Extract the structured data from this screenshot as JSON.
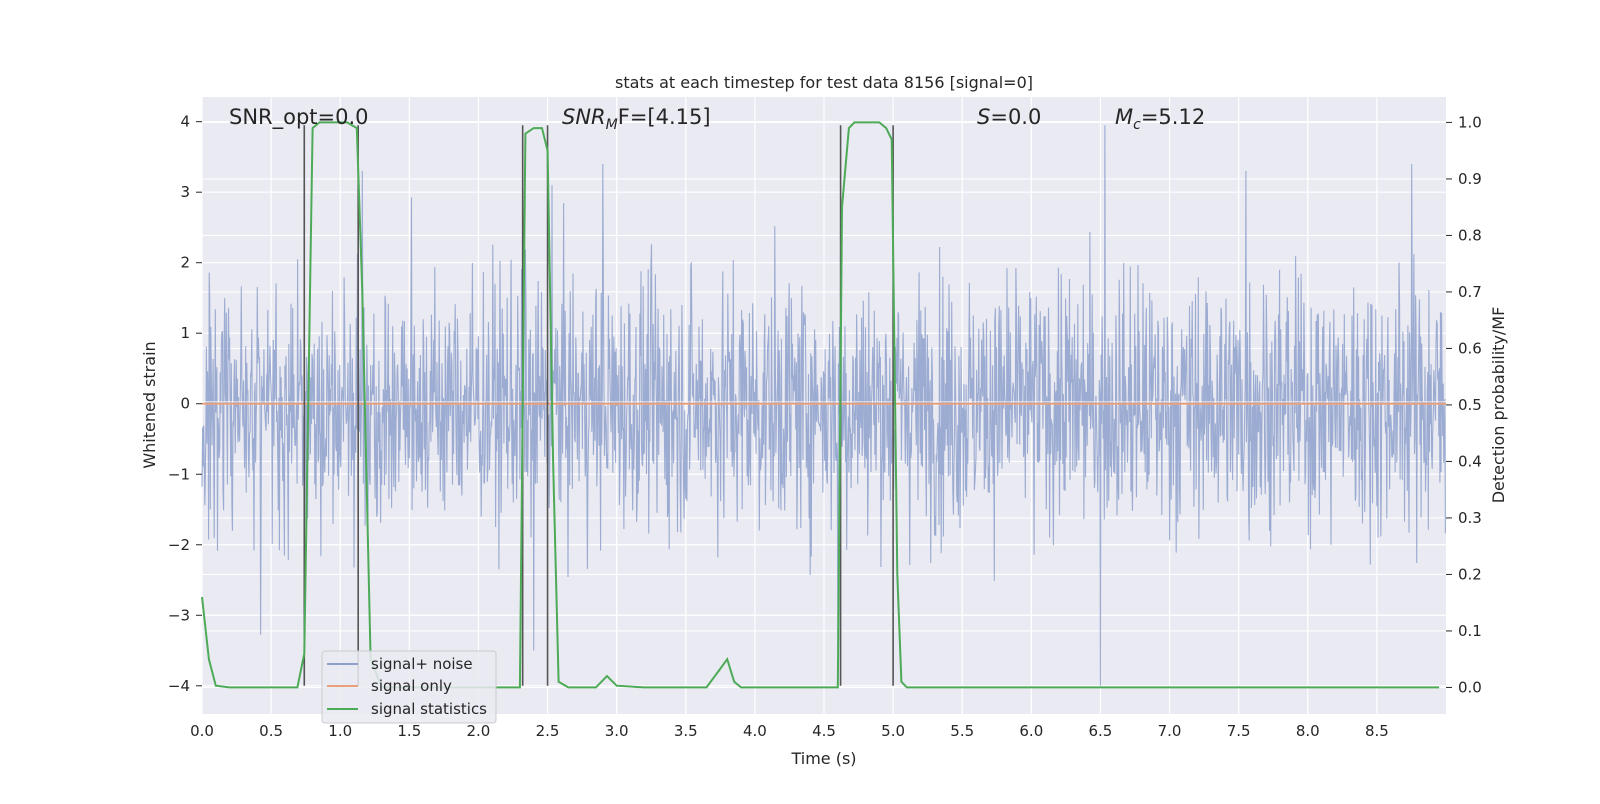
{
  "chart_data": {
    "type": "line",
    "title": "stats at each timestep for test data 8156 [signal=0]",
    "xlabel": "Time (s)",
    "ylabel_left": "Whitened strain",
    "ylabel_right": "Detection probability/MF",
    "xlim": [
      0,
      9.0
    ],
    "ylim_left": [
      -4.4,
      4.35
    ],
    "ylim_right": [
      -0.047,
      1.045
    ],
    "x_ticks": [
      0.0,
      0.5,
      1.0,
      1.5,
      2.0,
      2.5,
      3.0,
      3.5,
      4.0,
      4.5,
      5.0,
      5.5,
      6.0,
      6.5,
      7.0,
      7.5,
      8.0,
      8.5
    ],
    "x_tick_labels": [
      "0.0",
      "0.5",
      "1.0",
      "1.5",
      "2.0",
      "2.5",
      "3.0",
      "3.5",
      "4.0",
      "4.5",
      "5.0",
      "5.5",
      "6.0",
      "6.5",
      "7.0",
      "7.5",
      "8.0",
      "8.5"
    ],
    "y_left_ticks": [
      -4,
      -3,
      -2,
      -1,
      0,
      1,
      2,
      3,
      4
    ],
    "y_left_tick_labels": [
      "−4",
      "−3",
      "−2",
      "−1",
      "0",
      "1",
      "2",
      "3",
      "4"
    ],
    "y_right_ticks": [
      0.0,
      0.1,
      0.2,
      0.3,
      0.4,
      0.5,
      0.6,
      0.7,
      0.8,
      0.9,
      1.0
    ],
    "y_right_tick_labels": [
      "0.0",
      "0.1",
      "0.2",
      "0.3",
      "0.4",
      "0.5",
      "0.6",
      "0.7",
      "0.8",
      "0.9",
      "1.0"
    ],
    "grid": true,
    "legend_placement": "lower-left",
    "annotations": {
      "snr_opt": "SNR_opt=0.0",
      "snr_mf_main": "SNR",
      "snr_mf_sub": "M",
      "snr_mf_rest": "F=[4.15]",
      "s_main": "S",
      "s_rest": "=0.0",
      "mc_main": "M",
      "mc_sub": "c",
      "mc_rest": "=5.12"
    },
    "series": [
      {
        "name": "signal+ noise",
        "color": "#8da0cb",
        "axis": "left",
        "kind": "noise",
        "sample_rate": 250,
        "duration": 9.0,
        "typical_abs_peak": 2.3,
        "notable_peaks": [
          {
            "x": 1.16,
            "y": 3.3
          },
          {
            "x": 2.53,
            "y": 3.1
          },
          {
            "x": 2.9,
            "y": 3.4
          },
          {
            "x": 6.53,
            "y": 3.95
          },
          {
            "x": 7.55,
            "y": 3.3
          },
          {
            "x": 8.75,
            "y": 3.4
          },
          {
            "x": 4.6,
            "y": -3.5
          },
          {
            "x": 6.5,
            "y": -4.0
          },
          {
            "x": 2.4,
            "y": -3.5
          }
        ]
      },
      {
        "name": "signal only",
        "color": "#e8a07c",
        "axis": "left",
        "x": [
          0.0,
          9.0
        ],
        "y": [
          0.0,
          0.0
        ]
      },
      {
        "name": "signal statistics",
        "color": "#4daa57",
        "axis": "right",
        "x": [
          0.0,
          0.05,
          0.1,
          0.2,
          0.4,
          0.6,
          0.69,
          0.74,
          0.8,
          0.85,
          0.95,
          1.05,
          1.12,
          1.16,
          1.22,
          1.3,
          1.4,
          1.5,
          1.6,
          1.65,
          1.8,
          2.0,
          2.2,
          2.3,
          2.34,
          2.4,
          2.46,
          2.5,
          2.54,
          2.58,
          2.65,
          2.75,
          2.85,
          2.93,
          3.0,
          3.2,
          3.5,
          3.65,
          3.74,
          3.8,
          3.85,
          3.9,
          4.1,
          4.4,
          4.6,
          4.63,
          4.68,
          4.72,
          4.8,
          4.9,
          4.95,
          4.99,
          5.03,
          5.06,
          5.1,
          5.2,
          5.5,
          6.0,
          6.5,
          7.0,
          7.5,
          8.0,
          8.5,
          8.95
        ],
        "y": [
          0.16,
          0.05,
          0.003,
          0.0,
          0.0,
          0.0,
          0.0,
          0.06,
          0.99,
          1.0,
          1.0,
          1.0,
          0.99,
          0.7,
          0.05,
          0.0,
          0.0,
          0.0,
          0.0,
          0.0,
          0.0,
          0.0,
          0.0,
          0.0,
          0.98,
          0.99,
          0.99,
          0.95,
          0.4,
          0.01,
          0.0,
          0.0,
          0.0,
          0.02,
          0.003,
          0.0,
          0.0,
          0.0,
          0.03,
          0.05,
          0.01,
          0.0,
          0.0,
          0.0,
          0.0,
          0.85,
          0.99,
          1.0,
          1.0,
          1.0,
          0.99,
          0.97,
          0.2,
          0.01,
          0.0,
          0.0,
          0.0,
          0.0,
          0.0,
          0.0,
          0.0,
          0.0,
          0.0,
          0.0
        ]
      }
    ],
    "vertical_markers": [
      {
        "x": 0.74,
        "y_from": -4.0,
        "y_to": 3.95
      },
      {
        "x": 1.13,
        "y_from": -4.0,
        "y_to": 3.95
      },
      {
        "x": 2.32,
        "y_from": -4.0,
        "y_to": 3.95
      },
      {
        "x": 2.5,
        "y_from": -4.0,
        "y_to": 3.95
      },
      {
        "x": 4.62,
        "y_from": -4.0,
        "y_to": 3.95
      },
      {
        "x": 5.0,
        "y_from": -4.0,
        "y_to": 3.95
      }
    ],
    "marker_color": "#555555"
  }
}
